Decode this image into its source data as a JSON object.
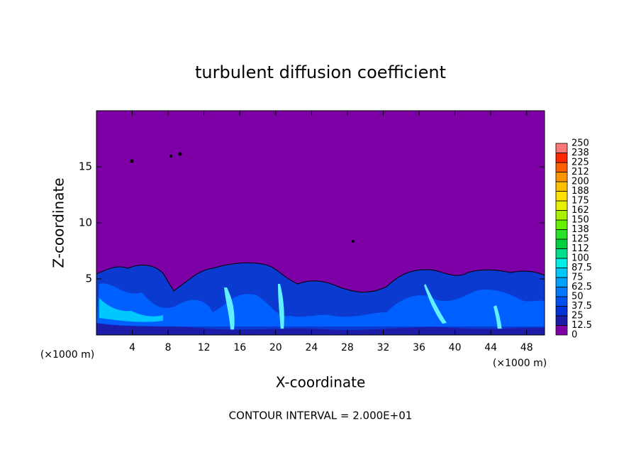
{
  "chart_data": {
    "type": "contour",
    "title": "turbulent diffusion coefficient",
    "x_label": "X-coordinate",
    "y_label": "Z-coordinate",
    "units": [
      "(×1000 m)",
      "(×1000 m)"
    ],
    "note": "CONTOUR INTERVAL = 2.000E+01",
    "xlim": [
      0,
      50
    ],
    "xticks": [
      4,
      8,
      12,
      16,
      20,
      24,
      28,
      32,
      36,
      40,
      44,
      48
    ],
    "ylim": [
      0,
      20
    ],
    "yticks": [
      5,
      10,
      15
    ],
    "colorbar": {
      "levels": [
        0,
        12.5,
        25,
        37.5,
        50,
        62.5,
        75,
        87.5,
        100,
        112,
        125,
        138,
        150,
        162,
        175,
        188,
        200,
        212,
        225,
        238,
        250
      ],
      "colors": [
        "#7d00a6",
        "#1c1ca8",
        "#0032d8",
        "#0050f0",
        "#0078ff",
        "#00a0ff",
        "#00c8ff",
        "#00eee6",
        "#00e08c",
        "#00d040",
        "#28e028",
        "#64f000",
        "#a8f000",
        "#e6f000",
        "#ffe000",
        "#ffc000",
        "#ff9400",
        "#ff6000",
        "#ff2800",
        "#ff7878"
      ]
    }
  }
}
